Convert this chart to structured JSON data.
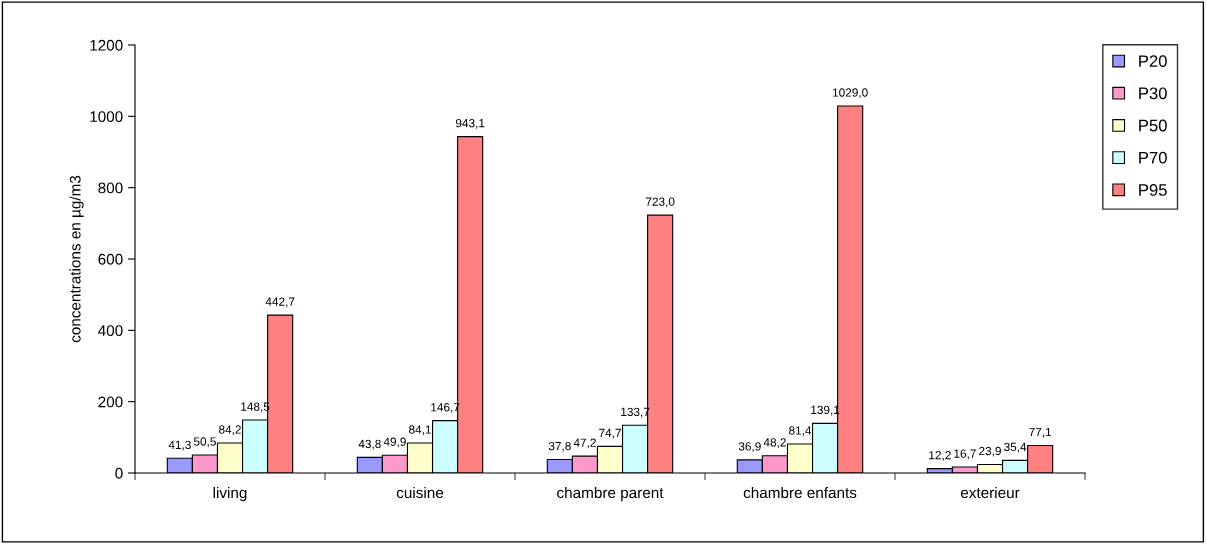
{
  "chart_data": {
    "type": "bar",
    "ylabel": "concentrations en µg/m3",
    "categories": [
      "living",
      "cuisine",
      "chambre parent",
      "chambre enfants",
      "exterieur"
    ],
    "series": [
      {
        "name": "P20",
        "color": "#9999ff",
        "values": [
          41.3,
          43.8,
          37.8,
          36.9,
          12.2
        ],
        "value_labels": [
          "41,3",
          "43,8",
          "37,8",
          "36,9",
          "12,2"
        ]
      },
      {
        "name": "P30",
        "color": "#ff99cc",
        "values": [
          50.5,
          49.9,
          47.2,
          48.2,
          16.7
        ],
        "value_labels": [
          "50,5",
          "49,9",
          "47,2",
          "48,2",
          "16,7"
        ]
      },
      {
        "name": "P50",
        "color": "#ffffcc",
        "values": [
          84.2,
          84.1,
          74.7,
          81.4,
          23.9
        ],
        "value_labels": [
          "84,2",
          "84,1",
          "74,7",
          "81,4",
          "23,9"
        ]
      },
      {
        "name": "P70",
        "color": "#ccffff",
        "values": [
          148.5,
          146.7,
          133.7,
          139.1,
          35.4
        ],
        "value_labels": [
          "148,5",
          "146,7",
          "133,7",
          "139,1",
          "35,4"
        ]
      },
      {
        "name": "P95",
        "color": "#ff8080",
        "values": [
          442.7,
          943.1,
          723.0,
          1029.0,
          77.1
        ],
        "value_labels": [
          "442,7",
          "943,1",
          "723,0",
          "1029,0",
          "77,1"
        ]
      }
    ],
    "ylim": [
      0,
      1200
    ],
    "yticks": [
      0,
      200,
      400,
      600,
      800,
      1000,
      1200
    ],
    "grid": false,
    "legend": "right"
  }
}
